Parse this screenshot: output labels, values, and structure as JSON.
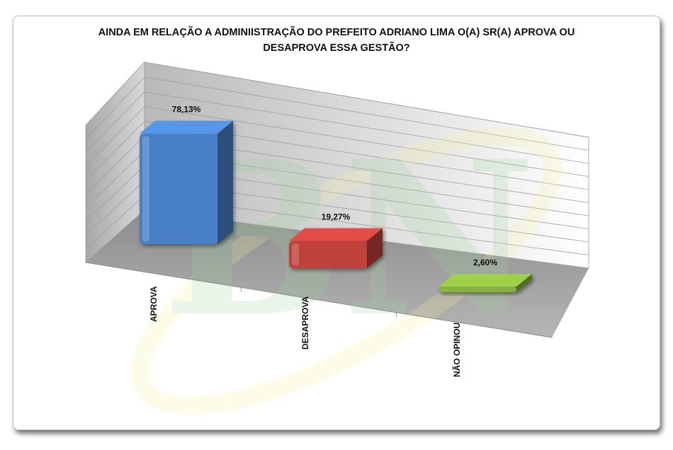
{
  "chart_data": {
    "type": "bar",
    "title_line1": "AINDA EM RELAÇÃO A ADMINIISTRAÇÃO DO PREFEITO ADRIANO LIMA O(A) SR(A) APROVA OU",
    "title_line2": "DESAPROVA  ESSA GESTÃO?",
    "categories": [
      "APROVA",
      "DESAPROVA",
      "NÃO OPINOU"
    ],
    "values": [
      78.13,
      19.27,
      2.6
    ],
    "data_labels": [
      "78,13%",
      "19,27%",
      "2,60%"
    ],
    "colors": [
      "#4a7fc7",
      "#c0413b",
      "#86b13f"
    ],
    "ylim": [
      0,
      100
    ],
    "grid": true,
    "legend": "none",
    "style": "3d-column"
  },
  "watermark": {
    "text": "BN"
  }
}
